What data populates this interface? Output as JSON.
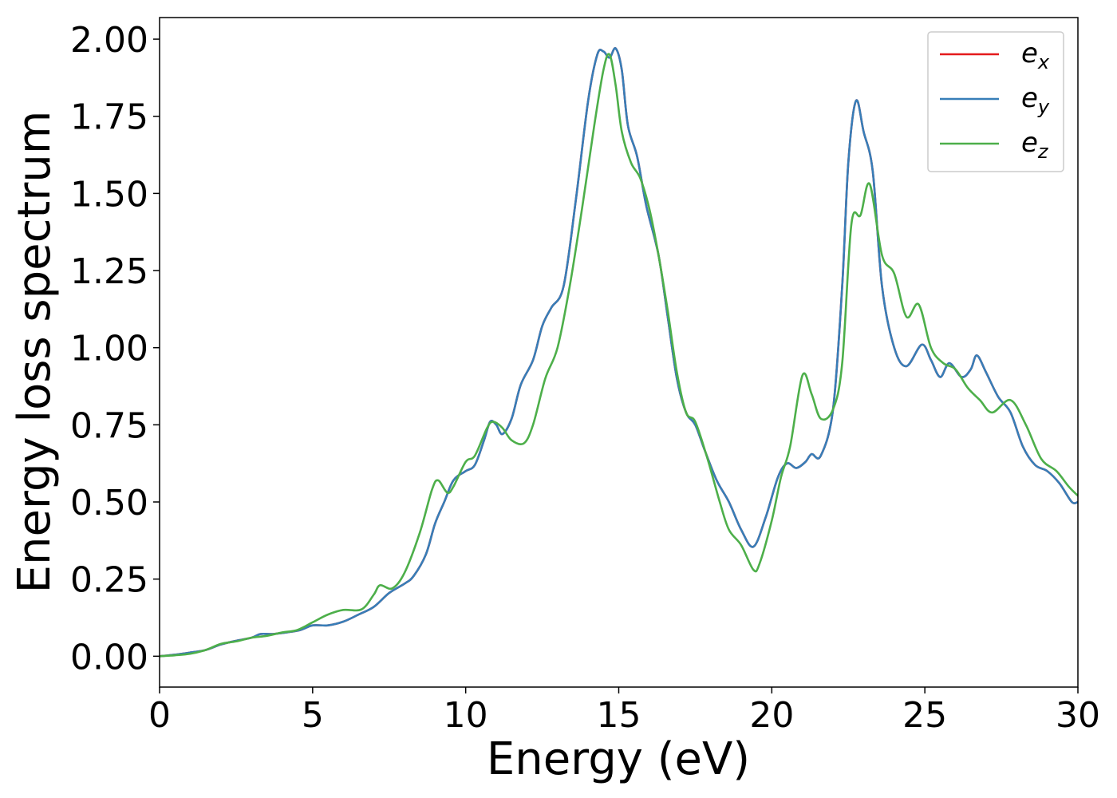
{
  "chart_data": {
    "type": "line",
    "xlabel": "Energy (eV)",
    "ylabel": "Energy loss spectrum",
    "xlim": [
      0,
      30
    ],
    "ylim": [
      -0.1,
      2.07
    ],
    "x_ticks": [
      "0",
      "5",
      "10",
      "15",
      "20",
      "25",
      "30"
    ],
    "y_ticks": [
      "0.00",
      "0.25",
      "0.50",
      "0.75",
      "1.00",
      "1.25",
      "1.50",
      "1.75",
      "2.00"
    ],
    "grid": false,
    "legend_position": "top-right",
    "series": [
      {
        "name": "e_x",
        "label_main": "e",
        "label_sub": "x",
        "color": "#e41a1c",
        "points": [
          [
            0,
            0
          ],
          [
            0.5,
            0.005
          ],
          [
            1,
            0.012
          ],
          [
            1.5,
            0.02
          ],
          [
            2,
            0.038
          ],
          [
            2.5,
            0.05
          ],
          [
            3,
            0.06
          ],
          [
            3.3,
            0.072
          ],
          [
            3.7,
            0.072
          ],
          [
            4.2,
            0.078
          ],
          [
            4.6,
            0.085
          ],
          [
            5,
            0.1
          ],
          [
            5.5,
            0.1
          ],
          [
            6,
            0.112
          ],
          [
            6.5,
            0.135
          ],
          [
            7,
            0.16
          ],
          [
            7.5,
            0.205
          ],
          [
            8,
            0.235
          ],
          [
            8.3,
            0.26
          ],
          [
            8.7,
            0.33
          ],
          [
            9,
            0.43
          ],
          [
            9.3,
            0.5
          ],
          [
            9.6,
            0.57
          ],
          [
            10,
            0.6
          ],
          [
            10.3,
            0.62
          ],
          [
            10.6,
            0.7
          ],
          [
            10.8,
            0.76
          ],
          [
            11,
            0.75
          ],
          [
            11.2,
            0.72
          ],
          [
            11.5,
            0.77
          ],
          [
            11.8,
            0.88
          ],
          [
            12.2,
            0.96
          ],
          [
            12.5,
            1.07
          ],
          [
            12.8,
            1.13
          ],
          [
            13.2,
            1.2
          ],
          [
            13.6,
            1.48
          ],
          [
            14,
            1.8
          ],
          [
            14.3,
            1.95
          ],
          [
            14.5,
            1.96
          ],
          [
            14.7,
            1.94
          ],
          [
            14.9,
            1.97
          ],
          [
            15.1,
            1.9
          ],
          [
            15.3,
            1.72
          ],
          [
            15.6,
            1.62
          ],
          [
            15.9,
            1.46
          ],
          [
            16.3,
            1.3
          ],
          [
            16.6,
            1.1
          ],
          [
            16.9,
            0.9
          ],
          [
            17.2,
            0.79
          ],
          [
            17.5,
            0.75
          ],
          [
            17.8,
            0.67
          ],
          [
            18.2,
            0.57
          ],
          [
            18.6,
            0.5
          ],
          [
            19,
            0.41
          ],
          [
            19.4,
            0.355
          ],
          [
            19.8,
            0.45
          ],
          [
            20.2,
            0.58
          ],
          [
            20.5,
            0.625
          ],
          [
            20.8,
            0.61
          ],
          [
            21.1,
            0.63
          ],
          [
            21.3,
            0.655
          ],
          [
            21.6,
            0.65
          ],
          [
            22,
            0.8
          ],
          [
            22.3,
            1.2
          ],
          [
            22.5,
            1.6
          ],
          [
            22.75,
            1.8
          ],
          [
            23,
            1.7
          ],
          [
            23.3,
            1.57
          ],
          [
            23.6,
            1.2
          ],
          [
            24,
            1.0
          ],
          [
            24.4,
            0.94
          ],
          [
            24.9,
            1.01
          ],
          [
            25.2,
            0.96
          ],
          [
            25.5,
            0.905
          ],
          [
            25.8,
            0.95
          ],
          [
            26.2,
            0.905
          ],
          [
            26.5,
            0.93
          ],
          [
            26.7,
            0.975
          ],
          [
            27,
            0.92
          ],
          [
            27.4,
            0.84
          ],
          [
            27.8,
            0.79
          ],
          [
            28.2,
            0.68
          ],
          [
            28.6,
            0.62
          ],
          [
            29,
            0.6
          ],
          [
            29.4,
            0.56
          ],
          [
            29.8,
            0.5
          ],
          [
            30,
            0.5
          ]
        ]
      },
      {
        "name": "e_y",
        "label_main": "e",
        "label_sub": "y",
        "color": "#377eb8",
        "points": [
          [
            0,
            0
          ],
          [
            0.5,
            0.005
          ],
          [
            1,
            0.012
          ],
          [
            1.5,
            0.02
          ],
          [
            2,
            0.038
          ],
          [
            2.5,
            0.05
          ],
          [
            3,
            0.06
          ],
          [
            3.3,
            0.072
          ],
          [
            3.7,
            0.072
          ],
          [
            4.2,
            0.078
          ],
          [
            4.6,
            0.085
          ],
          [
            5,
            0.1
          ],
          [
            5.5,
            0.1
          ],
          [
            6,
            0.112
          ],
          [
            6.5,
            0.135
          ],
          [
            7,
            0.16
          ],
          [
            7.5,
            0.205
          ],
          [
            8,
            0.235
          ],
          [
            8.3,
            0.26
          ],
          [
            8.7,
            0.33
          ],
          [
            9,
            0.43
          ],
          [
            9.3,
            0.5
          ],
          [
            9.6,
            0.57
          ],
          [
            10,
            0.6
          ],
          [
            10.3,
            0.62
          ],
          [
            10.6,
            0.7
          ],
          [
            10.8,
            0.76
          ],
          [
            11,
            0.75
          ],
          [
            11.2,
            0.72
          ],
          [
            11.5,
            0.77
          ],
          [
            11.8,
            0.88
          ],
          [
            12.2,
            0.96
          ],
          [
            12.5,
            1.07
          ],
          [
            12.8,
            1.13
          ],
          [
            13.2,
            1.2
          ],
          [
            13.6,
            1.48
          ],
          [
            14,
            1.8
          ],
          [
            14.3,
            1.95
          ],
          [
            14.5,
            1.96
          ],
          [
            14.7,
            1.94
          ],
          [
            14.9,
            1.97
          ],
          [
            15.1,
            1.9
          ],
          [
            15.3,
            1.72
          ],
          [
            15.6,
            1.62
          ],
          [
            15.9,
            1.46
          ],
          [
            16.3,
            1.3
          ],
          [
            16.6,
            1.1
          ],
          [
            16.9,
            0.9
          ],
          [
            17.2,
            0.79
          ],
          [
            17.5,
            0.75
          ],
          [
            17.8,
            0.67
          ],
          [
            18.2,
            0.57
          ],
          [
            18.6,
            0.5
          ],
          [
            19,
            0.41
          ],
          [
            19.4,
            0.355
          ],
          [
            19.8,
            0.45
          ],
          [
            20.2,
            0.58
          ],
          [
            20.5,
            0.625
          ],
          [
            20.8,
            0.61
          ],
          [
            21.1,
            0.63
          ],
          [
            21.3,
            0.655
          ],
          [
            21.6,
            0.65
          ],
          [
            22,
            0.8
          ],
          [
            22.3,
            1.2
          ],
          [
            22.5,
            1.6
          ],
          [
            22.75,
            1.8
          ],
          [
            23,
            1.7
          ],
          [
            23.3,
            1.57
          ],
          [
            23.6,
            1.2
          ],
          [
            24,
            1.0
          ],
          [
            24.4,
            0.94
          ],
          [
            24.9,
            1.01
          ],
          [
            25.2,
            0.96
          ],
          [
            25.5,
            0.905
          ],
          [
            25.8,
            0.95
          ],
          [
            26.2,
            0.905
          ],
          [
            26.5,
            0.93
          ],
          [
            26.7,
            0.975
          ],
          [
            27,
            0.92
          ],
          [
            27.4,
            0.84
          ],
          [
            27.8,
            0.79
          ],
          [
            28.2,
            0.68
          ],
          [
            28.6,
            0.62
          ],
          [
            29,
            0.6
          ],
          [
            29.4,
            0.56
          ],
          [
            29.8,
            0.5
          ],
          [
            30,
            0.5
          ]
        ]
      },
      {
        "name": "e_z",
        "label_main": "e",
        "label_sub": "z",
        "color": "#4daf4a",
        "points": [
          [
            0,
            0
          ],
          [
            0.5,
            0.003
          ],
          [
            1,
            0.008
          ],
          [
            1.5,
            0.02
          ],
          [
            2,
            0.04
          ],
          [
            2.5,
            0.048
          ],
          [
            3,
            0.06
          ],
          [
            3.5,
            0.066
          ],
          [
            4,
            0.077
          ],
          [
            4.5,
            0.085
          ],
          [
            5,
            0.11
          ],
          [
            5.5,
            0.135
          ],
          [
            6,
            0.15
          ],
          [
            6.6,
            0.152
          ],
          [
            7,
            0.2
          ],
          [
            7.2,
            0.23
          ],
          [
            7.6,
            0.22
          ],
          [
            8,
            0.27
          ],
          [
            8.5,
            0.4
          ],
          [
            8.9,
            0.54
          ],
          [
            9.1,
            0.57
          ],
          [
            9.4,
            0.53
          ],
          [
            9.6,
            0.55
          ],
          [
            10,
            0.63
          ],
          [
            10.3,
            0.65
          ],
          [
            10.7,
            0.74
          ],
          [
            10.9,
            0.76
          ],
          [
            11.2,
            0.74
          ],
          [
            11.5,
            0.7
          ],
          [
            11.9,
            0.69
          ],
          [
            12.2,
            0.75
          ],
          [
            12.6,
            0.9
          ],
          [
            13,
            1.0
          ],
          [
            13.4,
            1.2
          ],
          [
            13.8,
            1.45
          ],
          [
            14.2,
            1.72
          ],
          [
            14.5,
            1.9
          ],
          [
            14.7,
            1.95
          ],
          [
            14.9,
            1.85
          ],
          [
            15.1,
            1.7
          ],
          [
            15.4,
            1.6
          ],
          [
            15.7,
            1.55
          ],
          [
            16,
            1.45
          ],
          [
            16.3,
            1.3
          ],
          [
            16.6,
            1.12
          ],
          [
            16.9,
            0.92
          ],
          [
            17.2,
            0.79
          ],
          [
            17.5,
            0.76
          ],
          [
            17.9,
            0.64
          ],
          [
            18.3,
            0.5
          ],
          [
            18.6,
            0.41
          ],
          [
            19,
            0.36
          ],
          [
            19.4,
            0.28
          ],
          [
            19.6,
            0.3
          ],
          [
            20,
            0.44
          ],
          [
            20.3,
            0.58
          ],
          [
            20.6,
            0.68
          ],
          [
            21,
            0.91
          ],
          [
            21.3,
            0.85
          ],
          [
            21.6,
            0.77
          ],
          [
            22,
            0.8
          ],
          [
            22.3,
            0.95
          ],
          [
            22.6,
            1.4
          ],
          [
            22.9,
            1.43
          ],
          [
            23.2,
            1.53
          ],
          [
            23.6,
            1.3
          ],
          [
            24,
            1.24
          ],
          [
            24.4,
            1.1
          ],
          [
            24.8,
            1.14
          ],
          [
            25.2,
            1.0
          ],
          [
            25.6,
            0.95
          ],
          [
            26,
            0.93
          ],
          [
            26.4,
            0.87
          ],
          [
            26.8,
            0.83
          ],
          [
            27.2,
            0.79
          ],
          [
            27.8,
            0.83
          ],
          [
            28.3,
            0.75
          ],
          [
            28.8,
            0.64
          ],
          [
            29.3,
            0.6
          ],
          [
            29.7,
            0.55
          ],
          [
            30,
            0.52
          ]
        ]
      }
    ]
  }
}
